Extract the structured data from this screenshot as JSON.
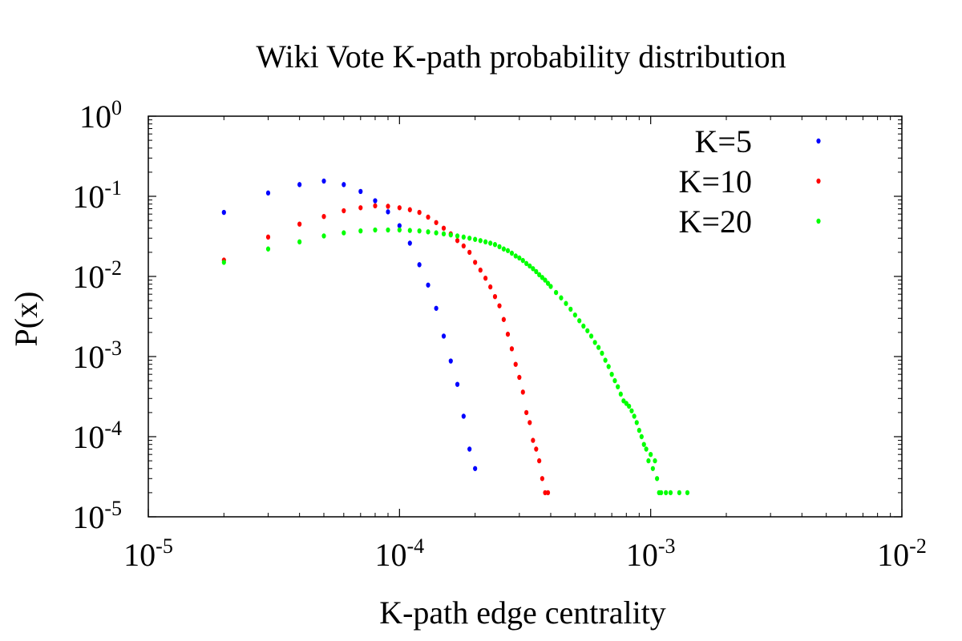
{
  "chart_data": {
    "type": "scatter",
    "title": "Wiki Vote K-path probability distribution",
    "xlabel": "K-path edge centrality",
    "ylabel": "P(x)",
    "xscale": "log",
    "yscale": "log",
    "xlim": [
      1e-05,
      0.01
    ],
    "ylim": [
      1e-05,
      1
    ],
    "grid": false,
    "legend_position": "top-right",
    "x_ticks": [
      {
        "value": 1e-05,
        "base": "10",
        "exp": "-5"
      },
      {
        "value": 0.0001,
        "base": "10",
        "exp": "-4"
      },
      {
        "value": 0.001,
        "base": "10",
        "exp": "-3"
      },
      {
        "value": 0.01,
        "base": "10",
        "exp": "-2"
      }
    ],
    "y_ticks": [
      {
        "value": 1e-05,
        "base": "10",
        "exp": "-5"
      },
      {
        "value": 0.0001,
        "base": "10",
        "exp": "-4"
      },
      {
        "value": 0.001,
        "base": "10",
        "exp": "-3"
      },
      {
        "value": 0.01,
        "base": "10",
        "exp": "-2"
      },
      {
        "value": 0.1,
        "base": "10",
        "exp": "-1"
      },
      {
        "value": 1,
        "base": "10",
        "exp": "0"
      }
    ],
    "series": [
      {
        "name": "K=5",
        "color": "#0000ff",
        "points": [
          [
            2e-05,
            0.063
          ],
          [
            3e-05,
            0.11
          ],
          [
            4e-05,
            0.14
          ],
          [
            5e-05,
            0.155
          ],
          [
            6e-05,
            0.14
          ],
          [
            7e-05,
            0.115
          ],
          [
            8e-05,
            0.088
          ],
          [
            9e-05,
            0.064
          ],
          [
            0.0001,
            0.043
          ],
          [
            0.00011,
            0.026
          ],
          [
            0.00012,
            0.014
          ],
          [
            0.00013,
            0.0078
          ],
          [
            0.00014,
            0.004
          ],
          [
            0.00015,
            0.0018
          ],
          [
            0.00016,
            0.00088
          ],
          [
            0.00017,
            0.00045
          ],
          [
            0.00018,
            0.00018
          ],
          [
            0.00019,
            7e-05
          ],
          [
            0.0002,
            4e-05
          ]
        ]
      },
      {
        "name": "K=10",
        "color": "#ff0000",
        "points": [
          [
            2e-05,
            0.016
          ],
          [
            3e-05,
            0.031
          ],
          [
            4e-05,
            0.045
          ],
          [
            5e-05,
            0.056
          ],
          [
            6e-05,
            0.066
          ],
          [
            7e-05,
            0.072
          ],
          [
            8e-05,
            0.076
          ],
          [
            9e-05,
            0.075
          ],
          [
            0.0001,
            0.072
          ],
          [
            0.00011,
            0.068
          ],
          [
            0.00012,
            0.063
          ],
          [
            0.00013,
            0.055
          ],
          [
            0.00014,
            0.047
          ],
          [
            0.00015,
            0.04
          ],
          [
            0.00016,
            0.034
          ],
          [
            0.00017,
            0.028
          ],
          [
            0.00018,
            0.024
          ],
          [
            0.00019,
            0.02
          ],
          [
            0.0002,
            0.015
          ],
          [
            0.00021,
            0.012
          ],
          [
            0.00022,
            0.0095
          ],
          [
            0.00023,
            0.0074
          ],
          [
            0.00024,
            0.0056
          ],
          [
            0.00025,
            0.0043
          ],
          [
            0.00026,
            0.0029
          ],
          [
            0.00027,
            0.0019
          ],
          [
            0.00028,
            0.00125
          ],
          [
            0.00029,
            0.0008
          ],
          [
            0.0003,
            0.00055
          ],
          [
            0.00031,
            0.00036
          ],
          [
            0.00032,
            0.0002
          ],
          [
            0.00033,
            0.00015
          ],
          [
            0.00034,
            9e-05
          ],
          [
            0.00035,
            7e-05
          ],
          [
            0.00036,
            5e-05
          ],
          [
            0.00037,
            3e-05
          ],
          [
            0.00038,
            2e-05
          ],
          [
            0.00039,
            2e-05
          ]
        ]
      },
      {
        "name": "K=20",
        "color": "#00ff00",
        "points": [
          [
            2e-05,
            0.015
          ],
          [
            3e-05,
            0.022
          ],
          [
            4e-05,
            0.027
          ],
          [
            5e-05,
            0.032
          ],
          [
            6e-05,
            0.035
          ],
          [
            7e-05,
            0.037
          ],
          [
            8e-05,
            0.038
          ],
          [
            9e-05,
            0.038
          ],
          [
            0.0001,
            0.038
          ],
          [
            0.00011,
            0.0375
          ],
          [
            0.00012,
            0.037
          ],
          [
            0.00013,
            0.036
          ],
          [
            0.00014,
            0.035
          ],
          [
            0.00015,
            0.034
          ],
          [
            0.00016,
            0.033
          ],
          [
            0.00017,
            0.032
          ],
          [
            0.00018,
            0.031
          ],
          [
            0.00019,
            0.03
          ],
          [
            0.0002,
            0.029
          ],
          [
            0.00021,
            0.028
          ],
          [
            0.00022,
            0.027
          ],
          [
            0.00023,
            0.026
          ],
          [
            0.00024,
            0.025
          ],
          [
            0.00025,
            0.0235
          ],
          [
            0.00026,
            0.022
          ],
          [
            0.00027,
            0.021
          ],
          [
            0.00028,
            0.0195
          ],
          [
            0.00029,
            0.018
          ],
          [
            0.0003,
            0.017
          ],
          [
            0.00031,
            0.0158
          ],
          [
            0.00032,
            0.0145
          ],
          [
            0.00033,
            0.0135
          ],
          [
            0.00034,
            0.0125
          ],
          [
            0.00035,
            0.0115
          ],
          [
            0.00036,
            0.0105
          ],
          [
            0.00037,
            0.0097
          ],
          [
            0.00038,
            0.009
          ],
          [
            0.00039,
            0.0082
          ],
          [
            0.0004,
            0.0075
          ],
          [
            0.00042,
            0.0063
          ],
          [
            0.00044,
            0.0054
          ],
          [
            0.00046,
            0.0046
          ],
          [
            0.00048,
            0.0039
          ],
          [
            0.0005,
            0.0033
          ],
          [
            0.00052,
            0.0028
          ],
          [
            0.00054,
            0.0024
          ],
          [
            0.00056,
            0.0021
          ],
          [
            0.00058,
            0.0018
          ],
          [
            0.0006,
            0.0015
          ],
          [
            0.00062,
            0.0013
          ],
          [
            0.00064,
            0.0011
          ],
          [
            0.00066,
            0.0009
          ],
          [
            0.00068,
            0.00075
          ],
          [
            0.0007,
            0.0006
          ],
          [
            0.00072,
            0.0005
          ],
          [
            0.00074,
            0.00042
          ],
          [
            0.00076,
            0.00034
          ],
          [
            0.00078,
            0.00028
          ],
          [
            0.0008,
            0.00026
          ],
          [
            0.00082,
            0.00024
          ],
          [
            0.00084,
            0.00021
          ],
          [
            0.00086,
            0.00018
          ],
          [
            0.00088,
            0.00015
          ],
          [
            0.0009,
            0.00012
          ],
          [
            0.00092,
            0.0001
          ],
          [
            0.00094,
            8e-05
          ],
          [
            0.00096,
            7e-05
          ],
          [
            0.00098,
            5e-05
          ],
          [
            0.001,
            6e-05
          ],
          [
            0.00102,
            4e-05
          ],
          [
            0.00104,
            5e-05
          ],
          [
            0.00106,
            3e-05
          ],
          [
            0.00108,
            2e-05
          ],
          [
            0.0011,
            2e-05
          ],
          [
            0.00115,
            2e-05
          ],
          [
            0.0012,
            2e-05
          ],
          [
            0.0013,
            2e-05
          ],
          [
            0.0014,
            2e-05
          ]
        ]
      }
    ]
  }
}
